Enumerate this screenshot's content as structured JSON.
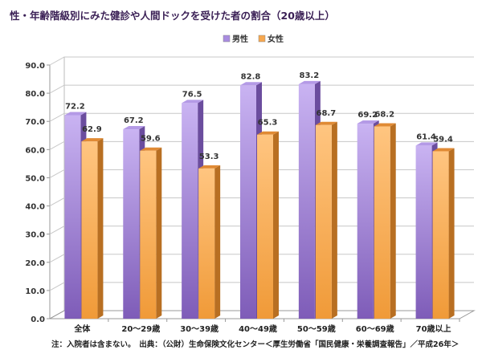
{
  "chart_data": {
    "type": "bar",
    "title": "性・年齢階級別にみた健診や人間ドックを受けた者の割合（20歳以上）",
    "categories": [
      "全体",
      "20～29歳",
      "30～39歳",
      "40～49歳",
      "50～59歳",
      "60～69歳",
      "70歳以上"
    ],
    "series": [
      {
        "name": "男性",
        "values": [
          72.2,
          67.2,
          76.5,
          82.8,
          83.2,
          69.2,
          61.4
        ],
        "color": "#a98ce0"
      },
      {
        "name": "女性",
        "values": [
          62.9,
          59.6,
          53.3,
          65.3,
          68.7,
          68.2,
          59.4
        ],
        "color": "#f7a84f"
      }
    ],
    "ylim": [
      0,
      90
    ],
    "yticks": [
      "0.0",
      "10.0",
      "20.0",
      "30.0",
      "40.0",
      "50.0",
      "60.0",
      "70.0",
      "80.0",
      "90.0"
    ],
    "grid": true,
    "legend": "top-center",
    "style": "3d-column",
    "note": "注：入院者は含まない。　出典：（公財）生命保険文化センター＜厚生労働省「国民健康・栄養調査報告」／平成26年＞"
  }
}
